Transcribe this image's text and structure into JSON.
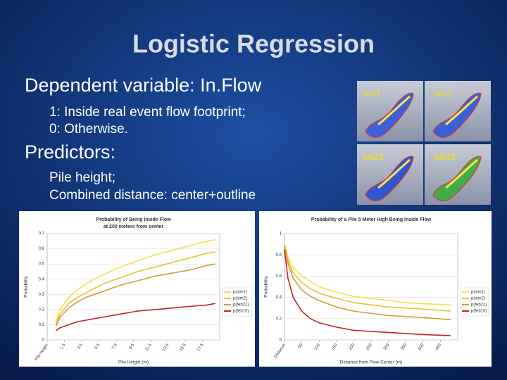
{
  "title": "Logistic Regression",
  "bullets": [
    {
      "heading": "Dependent variable: In.Flow",
      "lines": [
        "1: Inside real event flow footprint;",
        "0: Otherwise."
      ]
    },
    {
      "heading": "Predictors:",
      "lines": [
        "Pile height;",
        "Combined distance: center+outline"
      ]
    }
  ],
  "thumbnails": [
    "sim1",
    "sim2",
    "feb22",
    "feb10"
  ],
  "chart_data": [
    {
      "type": "line",
      "title": "Probability of Being Inside Flow",
      "subtitle": "at 200 meters from center",
      "x_label": "Pile Height (m)",
      "y_label": "Probability",
      "x": [
        0.5,
        1,
        2,
        3,
        4,
        6,
        8,
        10,
        12,
        14,
        16,
        18,
        19
      ],
      "xlim": [
        -0.5,
        19.5
      ],
      "xticks": [
        {
          "value": -0.5,
          "label": "Pile height"
        },
        1.5,
        3.5,
        5.5,
        7.5,
        9.5,
        11.5,
        13.5,
        15.5,
        17.5
      ],
      "ylim": [
        0,
        0.7
      ],
      "yticks": [
        0,
        0.1,
        0.2,
        0.3,
        0.4,
        0.5,
        0.6,
        0.7
      ],
      "grid": true,
      "legend": "right",
      "series": [
        {
          "name": "p(sim1)",
          "color": "#f2e24a",
          "values": [
            0.12,
            0.2,
            0.28,
            0.33,
            0.37,
            0.43,
            0.48,
            0.52,
            0.56,
            0.59,
            0.62,
            0.65,
            0.66
          ]
        },
        {
          "name": "p(sim2)",
          "color": "#e8c02c",
          "values": [
            0.1,
            0.17,
            0.24,
            0.28,
            0.31,
            0.37,
            0.41,
            0.45,
            0.48,
            0.51,
            0.54,
            0.57,
            0.58
          ]
        },
        {
          "name": "p(feb22)",
          "color": "#d99a3a",
          "values": [
            0.09,
            0.15,
            0.21,
            0.25,
            0.28,
            0.32,
            0.36,
            0.39,
            0.42,
            0.44,
            0.46,
            0.49,
            0.5
          ]
        },
        {
          "name": "p(feb10)",
          "color": "#cc1f1f",
          "values": [
            0.06,
            0.08,
            0.1,
            0.12,
            0.13,
            0.15,
            0.17,
            0.19,
            0.2,
            0.21,
            0.22,
            0.23,
            0.24
          ]
        }
      ]
    },
    {
      "type": "line",
      "title": "Probability of a Pile 5 Meter High Being Inside Flow",
      "x_label": "Distance from Flow Center (m)",
      "y_label": "Probability",
      "x": [
        0,
        10,
        25,
        50,
        75,
        100,
        150,
        200,
        250,
        300,
        350,
        400,
        480
      ],
      "xlim": [
        0,
        500
      ],
      "xticks": [
        {
          "value": 0,
          "label": "Distance"
        },
        50,
        100,
        150,
        200,
        250,
        300,
        350,
        400,
        450
      ],
      "ylim": [
        0,
        1
      ],
      "yticks": [
        0,
        0.2,
        0.4,
        0.6,
        0.8,
        1
      ],
      "grid": true,
      "legend": "right",
      "series": [
        {
          "name": "p(sim1)",
          "color": "#f2e24a",
          "values": [
            0.9,
            0.78,
            0.68,
            0.6,
            0.55,
            0.5,
            0.45,
            0.41,
            0.39,
            0.37,
            0.35,
            0.34,
            0.33
          ]
        },
        {
          "name": "p(sim2)",
          "color": "#e8c02c",
          "values": [
            0.9,
            0.75,
            0.63,
            0.54,
            0.48,
            0.44,
            0.39,
            0.35,
            0.33,
            0.31,
            0.3,
            0.29,
            0.27
          ]
        },
        {
          "name": "p(feb22)",
          "color": "#d99a3a",
          "values": [
            0.88,
            0.72,
            0.58,
            0.47,
            0.41,
            0.37,
            0.31,
            0.27,
            0.25,
            0.23,
            0.22,
            0.21,
            0.19
          ]
        },
        {
          "name": "p(feb10)",
          "color": "#cc1f1f",
          "values": [
            0.85,
            0.58,
            0.4,
            0.27,
            0.2,
            0.16,
            0.12,
            0.09,
            0.08,
            0.07,
            0.06,
            0.05,
            0.04
          ]
        }
      ]
    }
  ]
}
